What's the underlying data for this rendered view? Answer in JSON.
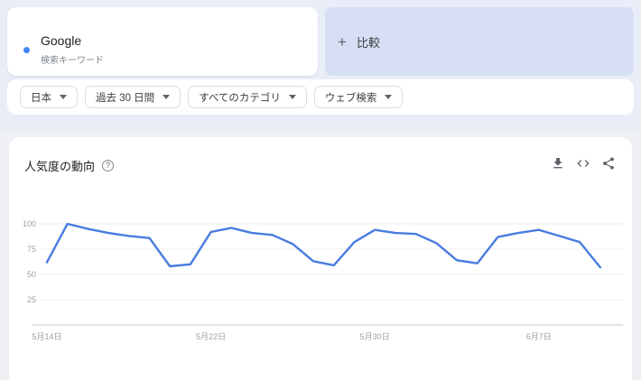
{
  "keyword_card": {
    "title": "Google",
    "subtitle": "検索キーワード",
    "dot_color": "#4285f4"
  },
  "compare": {
    "plus": "+",
    "label": "比較"
  },
  "filters": [
    {
      "label": "日本"
    },
    {
      "label": "過去 30 日間"
    },
    {
      "label": "すべてのカテゴリ"
    },
    {
      "label": "ウェブ検索"
    }
  ],
  "panel": {
    "title": "人気度の動向",
    "help_glyph": "?",
    "actions": [
      "download-icon",
      "embed-icon",
      "share-icon"
    ]
  },
  "chart_data": {
    "type": "line",
    "title": "人気度の動向",
    "series": [
      {
        "name": "Google",
        "color": "#4a7ce0",
        "values": [
          62,
          100,
          95,
          91,
          88,
          86,
          58,
          60,
          92,
          96,
          91,
          89,
          80,
          63,
          59,
          82,
          94,
          91,
          90,
          81,
          64,
          61,
          87,
          91,
          94,
          88,
          82,
          57
        ]
      }
    ],
    "y_ticks": [
      100,
      75,
      50,
      25
    ],
    "x_tick_labels": [
      {
        "index": 0,
        "label": "5月14日"
      },
      {
        "index": 8,
        "label": "5月22日"
      },
      {
        "index": 16,
        "label": "5月30日"
      },
      {
        "index": 24,
        "label": "6月7日"
      }
    ],
    "ylim": [
      0,
      100
    ],
    "grid": true,
    "legend": false
  },
  "colors": {
    "accent": "#4285f4",
    "top_band": "#e9edf8",
    "page_bg": "#eef0f4",
    "compare_bg": "#d6dff4",
    "grid": "#ececec",
    "axis": "#c6c9ce",
    "tick_label": "#9aa0a6"
  }
}
